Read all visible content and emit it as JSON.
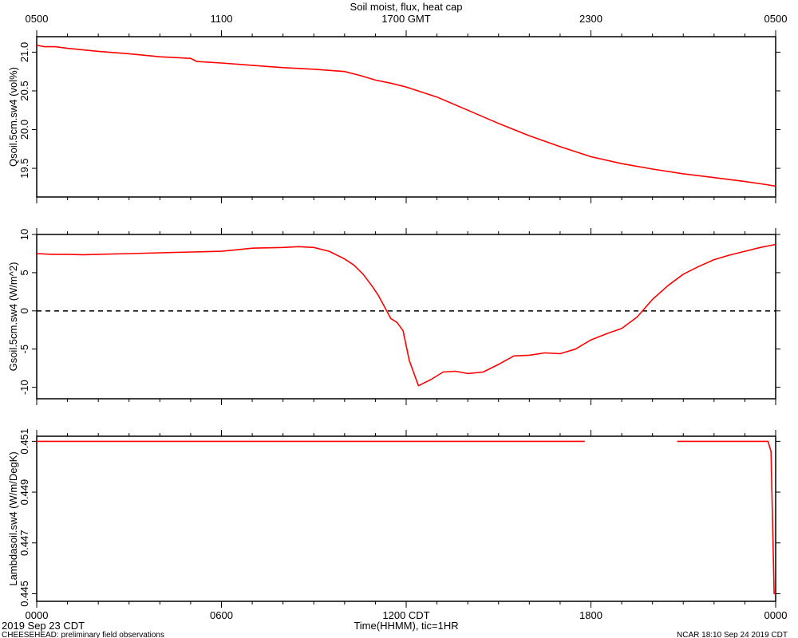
{
  "figure": {
    "title": "Soil moist, flux, heat cap",
    "top_axis_ticks": [
      "0500",
      "1100",
      "1700 GMT",
      "2300",
      "0500"
    ],
    "bottom_axis_ticks": [
      "0000",
      "0600",
      "1200 CDT",
      "1800",
      "0000"
    ],
    "xlabel": "Time(HHMM), tic=1HR",
    "date_left": "2019 Sep 23 CDT",
    "footer_left": "CHEESEHEAD: preliminary field observations",
    "footer_right": "NCAR 18:10 Sep 24 2019 CDT",
    "line_color": "#ff0000"
  },
  "chart_data": [
    {
      "type": "line",
      "title": "",
      "xlabel": "",
      "ylabel": "Qsoil.5cm.sw4 (vol%)",
      "ylim": [
        19.13,
        21.2
      ],
      "yticks": [
        19.5,
        20.0,
        20.5,
        21.0
      ],
      "ytick_labels": [
        "19.5",
        "20.0",
        "20.5",
        "21.0"
      ],
      "xlim": [
        0,
        24
      ],
      "zero_line": false,
      "series": [
        {
          "x": [
            0,
            0.25,
            0.6,
            1,
            2,
            3,
            4,
            5,
            5.2,
            6,
            7,
            8,
            9,
            10,
            10.5,
            11,
            11.5,
            12,
            13,
            14,
            15,
            16,
            17,
            18,
            19,
            20,
            21,
            22,
            23,
            23.7,
            24
          ],
          "y": [
            21.09,
            21.07,
            21.07,
            21.05,
            21.01,
            20.98,
            20.94,
            20.92,
            20.88,
            20.86,
            20.83,
            20.8,
            20.78,
            20.75,
            20.7,
            20.64,
            20.6,
            20.55,
            20.42,
            20.25,
            20.08,
            19.92,
            19.78,
            19.65,
            19.56,
            19.49,
            19.43,
            19.38,
            19.33,
            19.29,
            19.27
          ]
        }
      ]
    },
    {
      "type": "line",
      "title": "",
      "xlabel": "",
      "ylabel": "Gsoil.5cm.sw4 (W/m^2)",
      "ylim": [
        -11.5,
        10
      ],
      "yticks": [
        -10,
        -5,
        0,
        5,
        10
      ],
      "ytick_labels": [
        "-10",
        "-5",
        "0",
        "5",
        "10"
      ],
      "xlim": [
        0,
        24
      ],
      "zero_line": true,
      "series": [
        {
          "x": [
            0,
            0.5,
            1,
            1.5,
            2,
            3,
            4,
            5,
            5.5,
            6,
            6.5,
            7,
            8,
            8.5,
            9,
            9.5,
            10,
            10.3,
            10.6,
            10.9,
            11.1,
            11.3,
            11.5,
            11.7,
            11.9,
            12.1,
            12.4,
            12.8,
            13.2,
            13.6,
            14,
            14.5,
            15,
            15.5,
            16,
            16.5,
            17,
            17.5,
            18,
            18.5,
            19,
            19.5,
            20,
            20.5,
            21,
            21.5,
            22,
            22.5,
            23,
            23.5,
            24
          ],
          "y": [
            7.5,
            7.4,
            7.4,
            7.35,
            7.4,
            7.5,
            7.6,
            7.7,
            7.75,
            7.8,
            8.0,
            8.2,
            8.3,
            8.4,
            8.3,
            7.8,
            6.8,
            6.0,
            4.8,
            3.2,
            2.0,
            0.5,
            -1.0,
            -1.5,
            -2.6,
            -6.5,
            -9.8,
            -9.0,
            -8.0,
            -7.9,
            -8.2,
            -8.0,
            -7.0,
            -5.9,
            -5.8,
            -5.5,
            -5.6,
            -5.0,
            -3.8,
            -3.0,
            -2.3,
            -0.8,
            1.5,
            3.3,
            4.8,
            5.8,
            6.7,
            7.3,
            7.8,
            8.3,
            8.7
          ]
        }
      ]
    },
    {
      "type": "line",
      "title": "",
      "xlabel": "",
      "ylabel": "Lambdasoil.sw4 (W/m/DegK)",
      "ylim": [
        0.4447,
        0.4512
      ],
      "yticks": [
        0.445,
        0.447,
        0.449,
        0.451
      ],
      "ytick_labels": [
        "0.445",
        "0.447",
        "0.449",
        "0.451"
      ],
      "xlim": [
        0,
        24
      ],
      "zero_line": false,
      "series": [
        {
          "x": [
            0,
            17.8
          ],
          "y": [
            0.451,
            0.451
          ]
        },
        {
          "x": [
            20.8,
            23.75,
            23.85,
            23.95,
            24
          ],
          "y": [
            0.451,
            0.451,
            0.4506,
            0.445,
            0.445
          ]
        }
      ]
    }
  ]
}
